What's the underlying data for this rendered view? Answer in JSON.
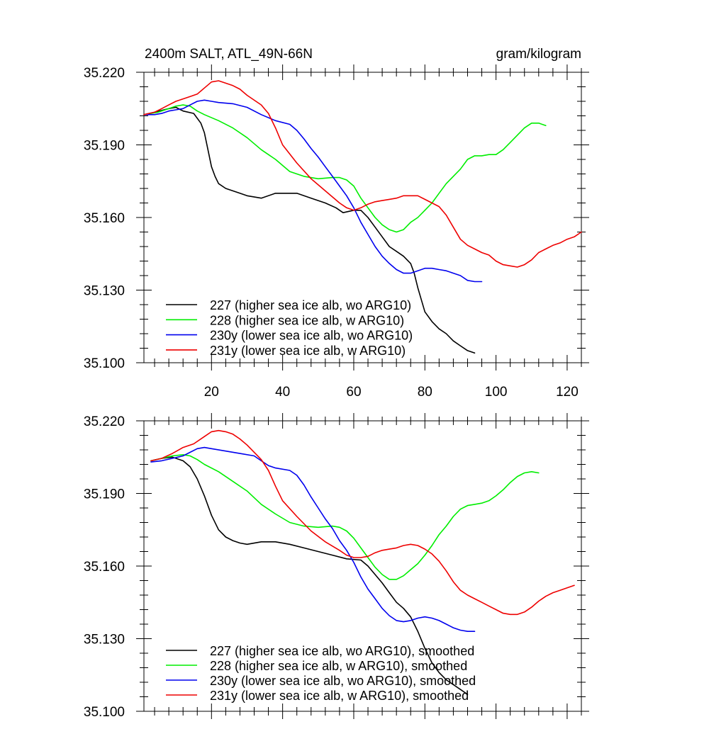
{
  "chart_data": [
    {
      "type": "line",
      "title_left": "2400m SALT, ATL_49N-66N",
      "title_right": "gram/kilogram",
      "xlim": [
        1,
        124
      ],
      "ylim": [
        35.1,
        35.22
      ],
      "y_ticks": [
        35.1,
        35.13,
        35.16,
        35.19,
        35.22
      ],
      "y_tick_labels": [
        "35.100",
        "35.130",
        "35.160",
        "35.190",
        "35.220"
      ],
      "x_ticks": [
        20,
        40,
        60,
        80,
        100,
        120
      ],
      "x_tick_labels": [
        "20",
        "40",
        "60",
        "80",
        "100",
        "120"
      ],
      "series": [
        {
          "name": "227 (higher sea ice alb, wo ARG10)",
          "color": "#000000",
          "x": [
            1,
            4,
            8,
            10,
            12,
            15,
            17,
            18,
            19,
            20,
            21,
            22,
            24,
            26,
            28,
            30,
            34,
            38,
            40,
            44,
            48,
            52,
            55,
            57,
            60,
            62,
            64,
            66,
            68,
            70,
            72,
            74,
            76,
            77,
            78,
            79,
            80,
            82,
            84,
            86,
            88,
            90,
            92,
            94
          ],
          "values": [
            35.2025,
            35.2035,
            35.205,
            35.2055,
            35.204,
            35.203,
            35.199,
            35.195,
            35.188,
            35.181,
            35.177,
            35.174,
            35.172,
            35.171,
            35.17,
            35.169,
            35.168,
            35.17,
            35.17,
            35.17,
            35.168,
            35.166,
            35.164,
            35.162,
            35.163,
            35.163,
            35.16,
            35.156,
            35.152,
            35.148,
            35.146,
            35.144,
            35.141,
            35.137,
            35.131,
            35.126,
            35.121,
            35.117,
            35.114,
            35.112,
            35.109,
            35.107,
            35.105,
            35.104
          ]
        },
        {
          "name": "228 (higher sea ice alb, w ARG10)",
          "color": "#00ee00",
          "x": [
            1,
            5,
            8,
            10,
            12,
            14,
            16,
            18,
            22,
            26,
            30,
            34,
            38,
            42,
            46,
            50,
            54,
            56,
            58,
            60,
            62,
            64,
            66,
            68,
            70,
            72,
            74,
            76,
            78,
            80,
            82,
            84,
            86,
            88,
            90,
            92,
            94,
            96,
            98,
            100,
            102,
            104,
            106,
            108,
            110,
            112,
            114
          ],
          "values": [
            35.2025,
            35.2035,
            35.205,
            35.206,
            35.2065,
            35.206,
            35.204,
            35.2025,
            35.2,
            35.197,
            35.193,
            35.188,
            35.184,
            35.179,
            35.177,
            35.176,
            35.1765,
            35.1765,
            35.1755,
            35.173,
            35.168,
            35.164,
            35.16,
            35.157,
            35.155,
            35.154,
            35.155,
            35.158,
            35.16,
            35.163,
            35.166,
            35.17,
            35.174,
            35.177,
            35.18,
            35.184,
            35.1855,
            35.1855,
            35.186,
            35.186,
            35.188,
            35.191,
            35.194,
            35.197,
            35.199,
            35.199,
            35.198
          ]
        },
        {
          "name": "230y (lower sea ice alb, wo ARG10)",
          "color": "#0000ee",
          "x": [
            1,
            4,
            6,
            8,
            10,
            12,
            14,
            16,
            18,
            20,
            22,
            26,
            30,
            34,
            38,
            42,
            44,
            46,
            48,
            50,
            52,
            54,
            56,
            58,
            60,
            62,
            64,
            66,
            68,
            70,
            72,
            74,
            76,
            78,
            80,
            82,
            84,
            86,
            88,
            90,
            92,
            94,
            96
          ],
          "values": [
            35.2025,
            35.2025,
            35.203,
            35.204,
            35.2045,
            35.205,
            35.2065,
            35.208,
            35.2085,
            35.208,
            35.2075,
            35.207,
            35.2055,
            35.2025,
            35.2,
            35.1985,
            35.196,
            35.1925,
            35.1885,
            35.185,
            35.181,
            35.177,
            35.173,
            35.169,
            35.164,
            35.158,
            35.153,
            35.148,
            35.144,
            35.141,
            35.1385,
            35.137,
            35.137,
            35.138,
            35.139,
            35.139,
            35.1385,
            35.138,
            35.137,
            35.136,
            35.134,
            35.1335,
            35.1335
          ]
        },
        {
          "name": "231y (lower sea ice alb, w ARG10)",
          "color": "#ee0000",
          "x": [
            1,
            4,
            6,
            8,
            10,
            12,
            14,
            16,
            18,
            20,
            22,
            24,
            26,
            28,
            30,
            34,
            36,
            38,
            40,
            44,
            48,
            52,
            56,
            58,
            60,
            62,
            64,
            66,
            68,
            70,
            72,
            74,
            76,
            78,
            80,
            82,
            84,
            86,
            88,
            90,
            92,
            94,
            96,
            98,
            100,
            102,
            104,
            106,
            108,
            110,
            112,
            114,
            116,
            118,
            120,
            122,
            124
          ],
          "values": [
            35.2025,
            35.2035,
            35.205,
            35.2065,
            35.208,
            35.209,
            35.21,
            35.211,
            35.2135,
            35.216,
            35.2165,
            35.2155,
            35.2145,
            35.213,
            35.2105,
            35.2065,
            35.203,
            35.197,
            35.19,
            35.1825,
            35.176,
            35.171,
            35.166,
            35.164,
            35.163,
            35.164,
            35.1655,
            35.1665,
            35.167,
            35.1675,
            35.168,
            35.169,
            35.169,
            35.169,
            35.1675,
            35.166,
            35.1645,
            35.161,
            35.156,
            35.151,
            35.1485,
            35.147,
            35.1455,
            35.1445,
            35.142,
            35.1405,
            35.14,
            35.1395,
            35.1405,
            35.1425,
            35.1455,
            35.147,
            35.1485,
            35.1495,
            35.151,
            35.152,
            35.154
          ]
        }
      ]
    },
    {
      "type": "line",
      "xlim": [
        1,
        124
      ],
      "ylim": [
        35.1,
        35.22
      ],
      "y_ticks": [
        35.1,
        35.13,
        35.16,
        35.19,
        35.22
      ],
      "y_tick_labels": [
        "35.100",
        "35.130",
        "35.160",
        "35.190",
        "35.220"
      ],
      "x_ticks": [
        20,
        40,
        60,
        80,
        100,
        120
      ],
      "series": [
        {
          "name": "227 (higher sea ice alb, wo ARG10), smoothed",
          "color": "#000000",
          "x": [
            3,
            6,
            9,
            12,
            14,
            16,
            18,
            20,
            22,
            24,
            26,
            28,
            30,
            34,
            38,
            42,
            46,
            50,
            54,
            58,
            62,
            64,
            66,
            68,
            70,
            72,
            74,
            76,
            78,
            80,
            82,
            84,
            86,
            88,
            90,
            92
          ],
          "values": [
            35.2035,
            35.2045,
            35.205,
            35.2035,
            35.201,
            35.196,
            35.189,
            35.181,
            35.175,
            35.172,
            35.1705,
            35.1695,
            35.169,
            35.17,
            35.17,
            35.169,
            35.1675,
            35.166,
            35.1645,
            35.163,
            35.1625,
            35.16,
            35.1565,
            35.153,
            35.149,
            35.145,
            35.1425,
            35.139,
            35.133,
            35.126,
            35.12,
            35.116,
            35.113,
            35.111,
            35.109,
            35.107
          ]
        },
        {
          "name": "228 (higher sea ice alb, w ARG10), smoothed",
          "color": "#00ee00",
          "x": [
            3,
            6,
            9,
            12,
            14,
            16,
            18,
            22,
            26,
            30,
            34,
            38,
            42,
            46,
            50,
            54,
            56,
            58,
            60,
            62,
            64,
            66,
            68,
            70,
            72,
            74,
            76,
            78,
            80,
            82,
            84,
            86,
            88,
            90,
            92,
            94,
            96,
            98,
            100,
            102,
            104,
            106,
            108,
            110,
            112
          ],
          "values": [
            35.2035,
            35.2045,
            35.2055,
            35.206,
            35.2055,
            35.204,
            35.202,
            35.199,
            35.195,
            35.191,
            35.1855,
            35.1815,
            35.178,
            35.1765,
            35.176,
            35.1765,
            35.176,
            35.1745,
            35.1715,
            35.1675,
            35.1635,
            35.1595,
            35.1565,
            35.1545,
            35.1545,
            35.156,
            35.1585,
            35.161,
            35.1645,
            35.1685,
            35.173,
            35.1765,
            35.1805,
            35.1835,
            35.185,
            35.1855,
            35.186,
            35.187,
            35.189,
            35.1915,
            35.1945,
            35.197,
            35.1985,
            35.199,
            35.1985
          ]
        },
        {
          "name": "230y (lower sea ice alb, wo ARG10), smoothed",
          "color": "#0000ee",
          "x": [
            3,
            6,
            9,
            12,
            14,
            16,
            18,
            20,
            24,
            28,
            32,
            34,
            36,
            38,
            42,
            44,
            46,
            48,
            50,
            52,
            54,
            56,
            58,
            60,
            62,
            64,
            66,
            68,
            70,
            72,
            74,
            76,
            78,
            80,
            82,
            84,
            86,
            88,
            90,
            92,
            94
          ],
          "values": [
            35.203,
            35.2035,
            35.2045,
            35.2055,
            35.207,
            35.2085,
            35.209,
            35.2085,
            35.2075,
            35.2065,
            35.2055,
            35.2035,
            35.2015,
            35.2005,
            35.1995,
            35.1975,
            35.1935,
            35.1885,
            35.184,
            35.1795,
            35.1755,
            35.1705,
            35.1665,
            35.1615,
            35.1555,
            35.1505,
            35.1465,
            35.1425,
            35.1395,
            35.1375,
            35.137,
            35.1375,
            35.1385,
            35.139,
            35.1385,
            35.1375,
            35.136,
            35.1345,
            35.1335,
            35.133,
            35.133
          ]
        },
        {
          "name": "231y (lower sea ice alb, w ARG10), smoothed",
          "color": "#ee0000",
          "x": [
            3,
            6,
            9,
            12,
            15,
            18,
            20,
            22,
            24,
            26,
            28,
            30,
            32,
            34,
            36,
            38,
            40,
            44,
            48,
            52,
            56,
            58,
            60,
            62,
            64,
            66,
            68,
            70,
            72,
            74,
            76,
            78,
            80,
            82,
            84,
            86,
            88,
            90,
            92,
            94,
            96,
            98,
            100,
            102,
            104,
            106,
            108,
            110,
            112,
            114,
            116,
            118,
            120,
            122
          ],
          "values": [
            35.2035,
            35.2045,
            35.2065,
            35.209,
            35.2105,
            35.2135,
            35.2155,
            35.216,
            35.2155,
            35.2145,
            35.2125,
            35.21,
            35.207,
            35.204,
            35.1995,
            35.193,
            35.187,
            35.1805,
            35.1745,
            35.17,
            35.1665,
            35.1645,
            35.1635,
            35.1635,
            35.164,
            35.1655,
            35.1665,
            35.167,
            35.1675,
            35.1685,
            35.169,
            35.1685,
            35.167,
            35.165,
            35.162,
            35.158,
            35.1535,
            35.15,
            35.148,
            35.1465,
            35.145,
            35.1435,
            35.142,
            35.1405,
            35.14,
            35.14,
            35.141,
            35.143,
            35.1455,
            35.1475,
            35.149,
            35.15,
            35.151,
            35.152
          ]
        }
      ]
    }
  ]
}
